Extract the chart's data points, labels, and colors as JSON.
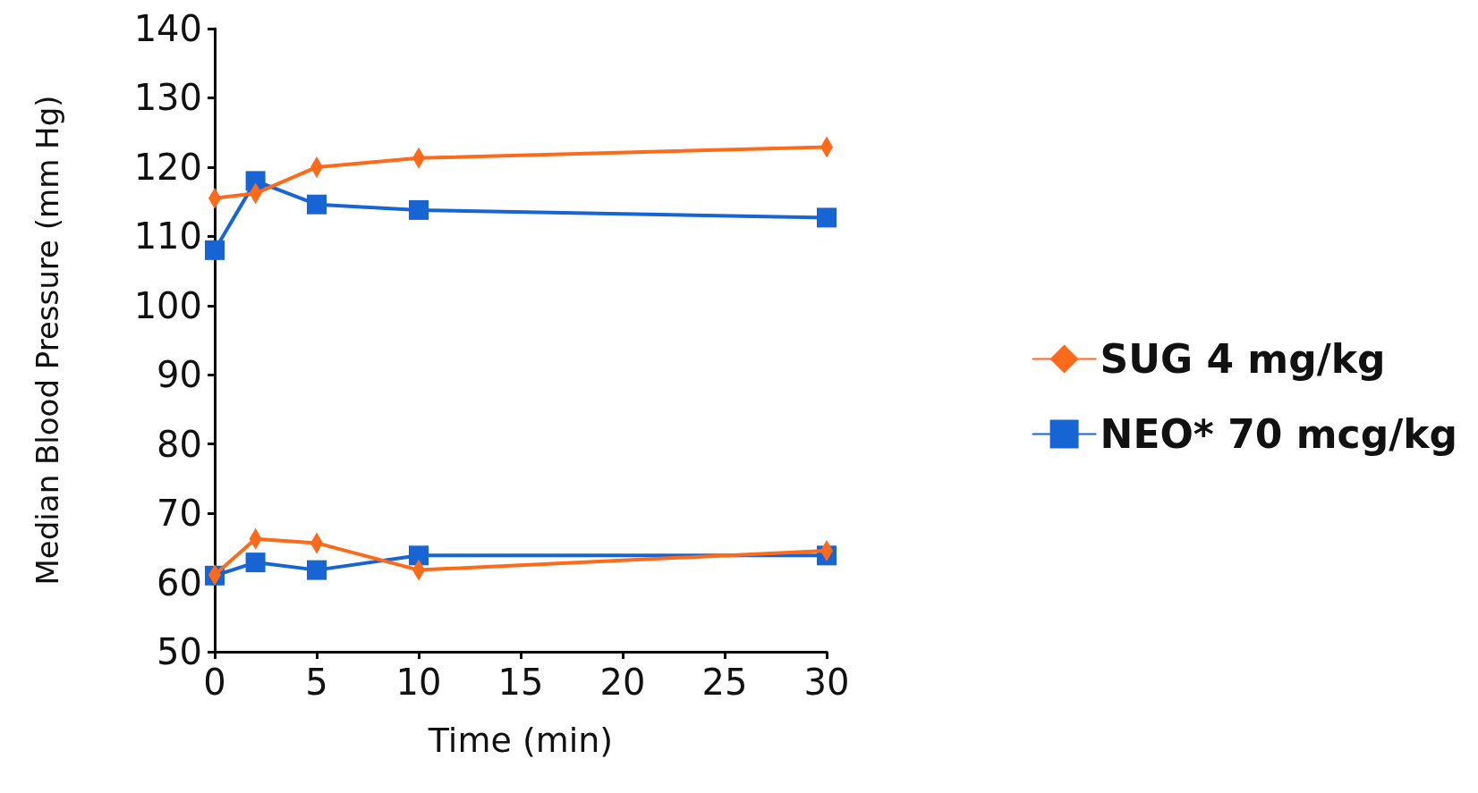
{
  "chart_data": {
    "type": "line",
    "xlabel": "Time (min)",
    "ylabel": "Median Blood Pressure (mm Hg)",
    "xlim": [
      0,
      30
    ],
    "xticks": [
      0,
      5,
      10,
      15,
      20,
      25,
      30
    ],
    "ylim": [
      50,
      140
    ],
    "yticks": [
      50,
      60,
      70,
      80,
      90,
      100,
      110,
      120,
      130,
      140
    ],
    "grid": false,
    "legend": "right",
    "series": [
      {
        "name": "SUG 4 mg/kg",
        "color": "#fc6a1a",
        "marker": "diamond",
        "x": [
          0,
          2,
          5,
          10,
          30
        ],
        "values": [
          115.5,
          116.2,
          120,
          121.3,
          122.9
        ]
      },
      {
        "name": "NEO* 70 mcg/kg",
        "color": "#1765d4",
        "marker": "square",
        "x": [
          0,
          2,
          5,
          10,
          30
        ],
        "values": [
          108,
          118,
          114.6,
          113.8,
          112.7
        ]
      },
      {
        "color": "#fc6a1a",
        "marker": "diamond",
        "x": [
          0,
          2,
          5,
          10,
          30
        ],
        "values": [
          61.1,
          66.3,
          65.7,
          61.8,
          64.6
        ]
      },
      {
        "color": "#1765d4",
        "marker": "square",
        "x": [
          0,
          2,
          5,
          10,
          30
        ],
        "values": [
          61,
          62.9,
          61.8,
          63.9,
          63.9
        ]
      }
    ]
  }
}
